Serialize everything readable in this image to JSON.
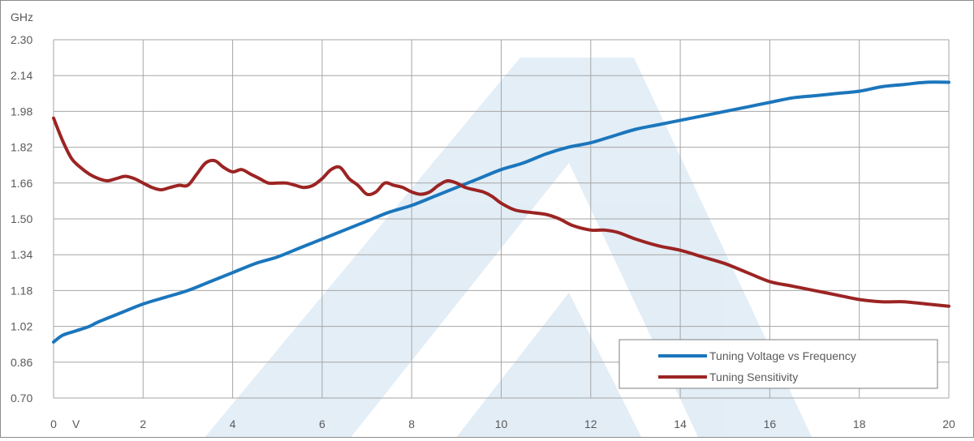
{
  "chart_data": {
    "type": "line",
    "title": "",
    "ylabel": "GHz",
    "xlabel": "V",
    "ylim": [
      0.7,
      2.3
    ],
    "xlim": [
      0,
      20
    ],
    "yticks": [
      "0.70",
      "0.86",
      "1.02",
      "1.18",
      "1.34",
      "1.50",
      "1.66",
      "1.82",
      "1.98",
      "2.14",
      "2.30"
    ],
    "xticks": [
      "0",
      "2",
      "4",
      "6",
      "8",
      "10",
      "12",
      "14",
      "16",
      "18",
      "20"
    ],
    "grid": true,
    "legend_position": "bottom-right",
    "series": [
      {
        "name": "Tuning Voltage vs Frequency",
        "color": "#1b76bc",
        "x": [
          0,
          0.2,
          0.5,
          0.8,
          1,
          1.5,
          2,
          2.5,
          3,
          3.5,
          4,
          4.5,
          5,
          5.5,
          6,
          6.5,
          7,
          7.5,
          8,
          8.5,
          9,
          9.5,
          10,
          10.5,
          11,
          11.5,
          12,
          12.5,
          13,
          13.5,
          14,
          14.5,
          15,
          15.5,
          16,
          16.5,
          17,
          17.5,
          18,
          18.5,
          19,
          19.5,
          20
        ],
        "y": [
          0.95,
          0.98,
          1.0,
          1.02,
          1.04,
          1.08,
          1.12,
          1.15,
          1.18,
          1.22,
          1.26,
          1.3,
          1.33,
          1.37,
          1.41,
          1.45,
          1.49,
          1.53,
          1.56,
          1.6,
          1.64,
          1.68,
          1.72,
          1.75,
          1.79,
          1.82,
          1.84,
          1.87,
          1.9,
          1.92,
          1.94,
          1.96,
          1.98,
          2.0,
          2.02,
          2.04,
          2.05,
          2.06,
          2.07,
          2.09,
          2.1,
          2.11,
          2.11
        ]
      },
      {
        "name": "Tuning Sensitivity",
        "color": "#9b2423",
        "x": [
          0,
          0.2,
          0.4,
          0.6,
          0.8,
          1.0,
          1.2,
          1.4,
          1.6,
          1.8,
          2.0,
          2.2,
          2.4,
          2.6,
          2.8,
          3.0,
          3.2,
          3.4,
          3.6,
          3.8,
          4.0,
          4.2,
          4.4,
          4.6,
          4.8,
          5.0,
          5.2,
          5.4,
          5.6,
          5.8,
          6.0,
          6.2,
          6.4,
          6.6,
          6.8,
          7.0,
          7.2,
          7.4,
          7.6,
          7.8,
          8.0,
          8.2,
          8.4,
          8.6,
          8.8,
          9.0,
          9.2,
          9.4,
          9.6,
          9.8,
          10.0,
          10.3,
          10.6,
          11.0,
          11.3,
          11.6,
          12.0,
          12.3,
          12.6,
          13.0,
          13.5,
          14.0,
          14.5,
          15.0,
          15.5,
          16.0,
          16.5,
          17.0,
          17.5,
          18.0,
          18.5,
          19.0,
          19.5,
          20.0
        ],
        "y": [
          1.95,
          1.85,
          1.77,
          1.73,
          1.7,
          1.68,
          1.67,
          1.68,
          1.69,
          1.68,
          1.66,
          1.64,
          1.63,
          1.64,
          1.65,
          1.65,
          1.7,
          1.75,
          1.76,
          1.73,
          1.71,
          1.72,
          1.7,
          1.68,
          1.66,
          1.66,
          1.66,
          1.65,
          1.64,
          1.65,
          1.68,
          1.72,
          1.73,
          1.68,
          1.65,
          1.61,
          1.62,
          1.66,
          1.65,
          1.64,
          1.62,
          1.61,
          1.62,
          1.65,
          1.67,
          1.66,
          1.64,
          1.63,
          1.62,
          1.6,
          1.57,
          1.54,
          1.53,
          1.52,
          1.5,
          1.47,
          1.45,
          1.45,
          1.44,
          1.41,
          1.38,
          1.36,
          1.33,
          1.3,
          1.26,
          1.22,
          1.2,
          1.18,
          1.16,
          1.14,
          1.13,
          1.13,
          1.12,
          1.11
        ]
      }
    ]
  }
}
